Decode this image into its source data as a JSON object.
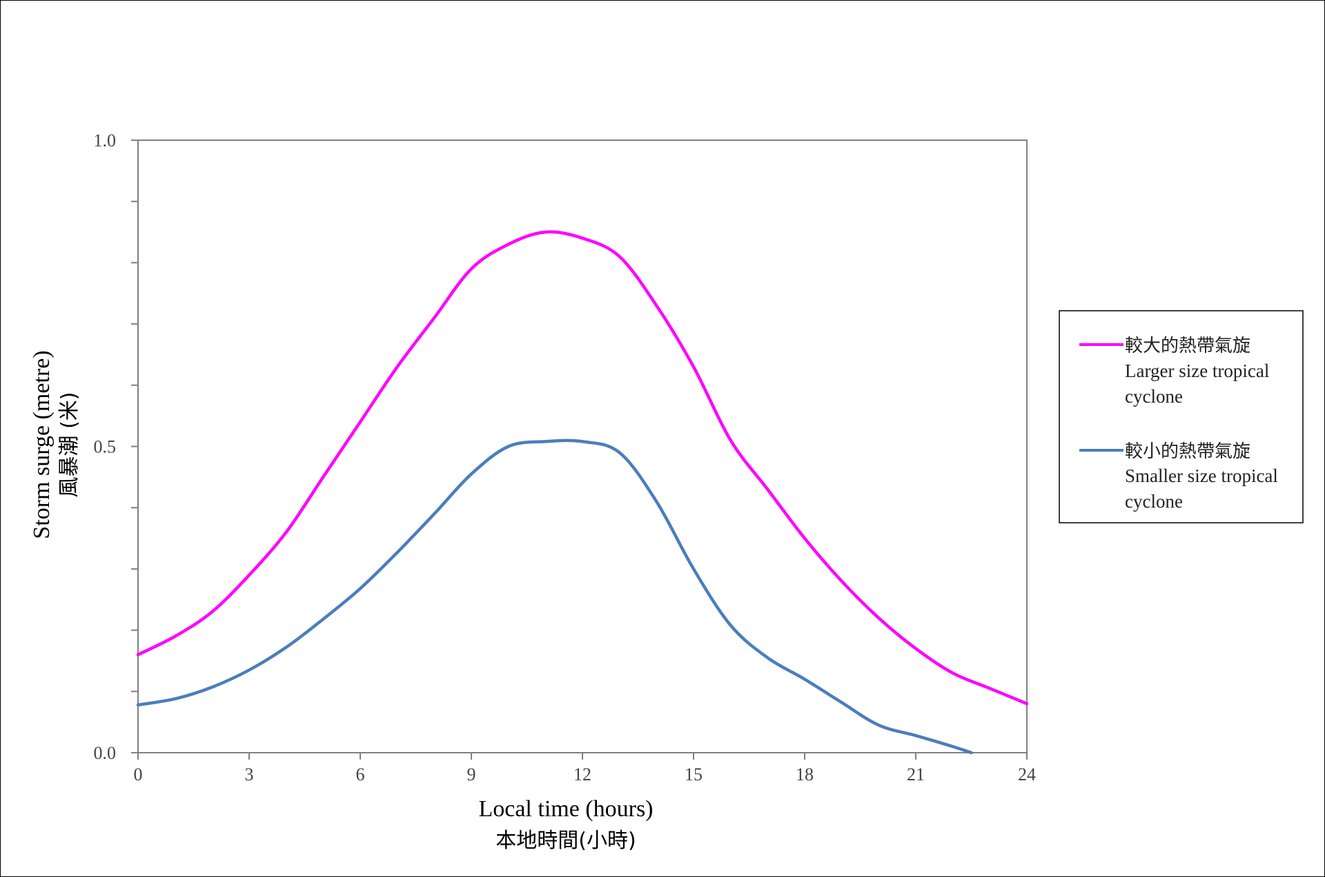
{
  "chart_data": {
    "type": "line",
    "xlabel": "Local time (hours)",
    "xlabel_cn": "本地時間(小時)",
    "ylabel": "Storm surge (metre)",
    "ylabel_cn": "風暴潮 (米)",
    "xlim": [
      0,
      24
    ],
    "ylim": [
      0,
      1
    ],
    "x_ticks": [
      0,
      3,
      6,
      9,
      12,
      15,
      18,
      21,
      24
    ],
    "x_tick_labels": [
      "0",
      "3",
      "6",
      "9",
      "12",
      "15",
      "18",
      "21",
      "24"
    ],
    "y_ticks": [
      0,
      0.5,
      1
    ],
    "y_tick_labels": [
      "0.0",
      "0.5",
      "1.0"
    ],
    "grid": false,
    "legend_position": "right",
    "series": [
      {
        "name": "較大的熱帶氣旋",
        "name_en": "Larger size tropical cyclone",
        "color": "#ff00ff",
        "x": [
          0,
          1,
          2,
          3,
          4,
          5,
          6,
          7,
          8,
          9,
          10,
          11,
          12,
          13,
          14,
          15,
          16,
          17,
          18,
          19,
          20,
          21,
          22,
          23,
          24
        ],
        "y": [
          0.16,
          0.19,
          0.23,
          0.29,
          0.36,
          0.45,
          0.54,
          0.63,
          0.71,
          0.79,
          0.83,
          0.85,
          0.84,
          0.81,
          0.73,
          0.63,
          0.51,
          0.43,
          0.35,
          0.28,
          0.22,
          0.17,
          0.13,
          0.105,
          0.08
        ]
      },
      {
        "name": "較小的熱帶氣旋",
        "name_en": "Smaller size tropical cyclone",
        "color": "#4a7ebb",
        "x": [
          0,
          1,
          2,
          3,
          4,
          5,
          6,
          7,
          8,
          9,
          10,
          11,
          12,
          13,
          14,
          15,
          16,
          17,
          18,
          19,
          20,
          21,
          22,
          22.5
        ],
        "y": [
          0.078,
          0.088,
          0.107,
          0.135,
          0.172,
          0.218,
          0.268,
          0.327,
          0.39,
          0.455,
          0.5,
          0.508,
          0.508,
          0.49,
          0.41,
          0.3,
          0.208,
          0.155,
          0.12,
          0.082,
          0.045,
          0.028,
          0.01,
          0.0
        ]
      }
    ]
  }
}
